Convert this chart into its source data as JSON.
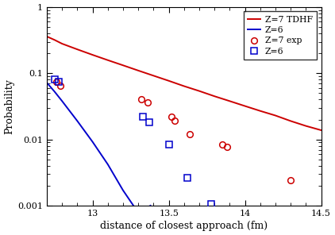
{
  "xlim": [
    12.7,
    14.5
  ],
  "ylim": [
    0.001,
    1.0
  ],
  "xlabel": "distance of closest approach (fm)",
  "ylabel": "Probability",
  "legend": [
    {
      "label": "Z=7 TDHF",
      "color": "#cc0000",
      "type": "line"
    },
    {
      "label": "Z=6",
      "color": "#0000cc",
      "type": "line"
    },
    {
      "label": "Z=7 exp",
      "color": "#cc0000",
      "type": "circle"
    },
    {
      "label": "Z=6",
      "color": "#0000cc",
      "type": "square"
    }
  ],
  "z7_tdhf_line": {
    "x": [
      12.7,
      12.75,
      12.8,
      12.9,
      13.0,
      13.1,
      13.2,
      13.3,
      13.4,
      13.5,
      13.6,
      13.7,
      13.8,
      13.9,
      14.0,
      14.1,
      14.2,
      14.3,
      14.4,
      14.5
    ],
    "y": [
      0.36,
      0.32,
      0.28,
      0.23,
      0.19,
      0.158,
      0.132,
      0.11,
      0.092,
      0.077,
      0.064,
      0.054,
      0.045,
      0.038,
      0.032,
      0.027,
      0.023,
      0.019,
      0.016,
      0.0138
    ]
  },
  "z6_tdhf_line": {
    "x": [
      12.7,
      12.75,
      12.8,
      12.9,
      13.0,
      13.1,
      13.2,
      13.3,
      13.38
    ],
    "y": [
      0.072,
      0.053,
      0.038,
      0.019,
      0.0092,
      0.0042,
      0.0017,
      0.00078,
      0.001
    ]
  },
  "z7_exp": {
    "x": [
      12.76,
      12.79,
      13.32,
      13.36,
      13.52,
      13.54,
      13.64,
      13.85,
      13.88,
      14.3
    ],
    "y": [
      0.075,
      0.065,
      0.04,
      0.036,
      0.022,
      0.019,
      0.012,
      0.0085,
      0.0078,
      0.0024
    ]
  },
  "z6_exp": {
    "x": [
      12.75,
      12.78,
      13.33,
      13.37,
      13.5,
      13.62,
      13.78
    ],
    "y": [
      0.082,
      0.074,
      0.022,
      0.018,
      0.0085,
      0.0026,
      0.00105
    ]
  },
  "figsize": [
    4.22,
    2.96
  ],
  "dpi": 100
}
